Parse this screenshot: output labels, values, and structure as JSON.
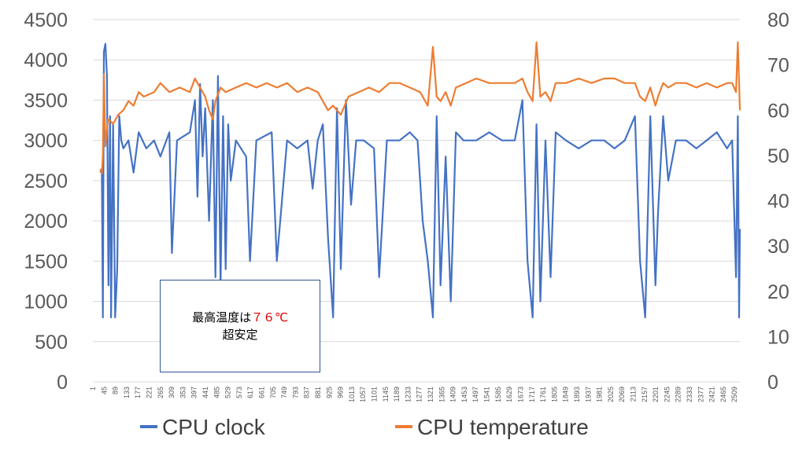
{
  "chart_data": {
    "type": "line",
    "title": "",
    "xlabel": "",
    "ylabel": "",
    "y_left": {
      "min": 0,
      "max": 4500,
      "step": 500,
      "ticks": [
        "0",
        "500",
        "1000",
        "1500",
        "2000",
        "2500",
        "3000",
        "3500",
        "4000",
        "4500"
      ]
    },
    "y_right": {
      "min": 0,
      "max": 80,
      "step": 10,
      "ticks": [
        "0",
        "10",
        "20",
        "30",
        "40",
        "50",
        "60",
        "70",
        "80"
      ]
    },
    "x": {
      "min": 1,
      "max": 2530,
      "ticks": [
        "1",
        "45",
        "89",
        "133",
        "177",
        "221",
        "265",
        "309",
        "353",
        "397",
        "441",
        "485",
        "529",
        "573",
        "617",
        "661",
        "705",
        "749",
        "793",
        "837",
        "881",
        "925",
        "969",
        "1013",
        "1057",
        "1101",
        "1145",
        "1189",
        "1233",
        "1277",
        "1321",
        "1365",
        "1409",
        "1453",
        "1497",
        "1541",
        "1585",
        "1629",
        "1673",
        "1717",
        "1761",
        "1805",
        "1849",
        "1893",
        "1937",
        "1981",
        "2025",
        "2069",
        "2113",
        "2157",
        "2201",
        "2245",
        "2289",
        "2333",
        "2377",
        "2421",
        "2465",
        "2509"
      ]
    },
    "grid": true,
    "legend_placement": "bottom",
    "series": [
      {
        "name": "CPU clock",
        "axis": "left",
        "color": "#4472c4",
        "points": [
          [
            30,
            2600
          ],
          [
            36,
            2650
          ],
          [
            40,
            800
          ],
          [
            44,
            4100
          ],
          [
            50,
            4200
          ],
          [
            56,
            3800
          ],
          [
            62,
            1200
          ],
          [
            68,
            3300
          ],
          [
            72,
            800
          ],
          [
            80,
            3200
          ],
          [
            88,
            800
          ],
          [
            96,
            1400
          ],
          [
            104,
            3300
          ],
          [
            112,
            3000
          ],
          [
            120,
            2900
          ],
          [
            140,
            3000
          ],
          [
            160,
            2600
          ],
          [
            180,
            3100
          ],
          [
            210,
            2900
          ],
          [
            240,
            3000
          ],
          [
            265,
            2800
          ],
          [
            300,
            3100
          ],
          [
            310,
            1600
          ],
          [
            330,
            3000
          ],
          [
            380,
            3100
          ],
          [
            400,
            3500
          ],
          [
            410,
            2300
          ],
          [
            420,
            3700
          ],
          [
            430,
            2800
          ],
          [
            440,
            3400
          ],
          [
            455,
            2000
          ],
          [
            470,
            3500
          ],
          [
            480,
            1300
          ],
          [
            490,
            3800
          ],
          [
            500,
            1200
          ],
          [
            510,
            3300
          ],
          [
            520,
            1400
          ],
          [
            530,
            3200
          ],
          [
            540,
            2500
          ],
          [
            560,
            3000
          ],
          [
            600,
            2800
          ],
          [
            615,
            1500
          ],
          [
            640,
            3000
          ],
          [
            700,
            3100
          ],
          [
            720,
            1500
          ],
          [
            760,
            3000
          ],
          [
            800,
            2900
          ],
          [
            840,
            3000
          ],
          [
            860,
            2400
          ],
          [
            880,
            3000
          ],
          [
            900,
            3200
          ],
          [
            920,
            1800
          ],
          [
            940,
            800
          ],
          [
            955,
            3400
          ],
          [
            970,
            1400
          ],
          [
            990,
            3500
          ],
          [
            1010,
            2200
          ],
          [
            1030,
            3000
          ],
          [
            1060,
            3000
          ],
          [
            1100,
            2900
          ],
          [
            1120,
            1300
          ],
          [
            1150,
            3000
          ],
          [
            1200,
            3000
          ],
          [
            1240,
            3100
          ],
          [
            1270,
            3000
          ],
          [
            1290,
            2000
          ],
          [
            1310,
            1500
          ],
          [
            1330,
            800
          ],
          [
            1345,
            3300
          ],
          [
            1360,
            1200
          ],
          [
            1380,
            2800
          ],
          [
            1400,
            1000
          ],
          [
            1420,
            3100
          ],
          [
            1450,
            3000
          ],
          [
            1500,
            3000
          ],
          [
            1550,
            3100
          ],
          [
            1600,
            3000
          ],
          [
            1650,
            3000
          ],
          [
            1680,
            3500
          ],
          [
            1700,
            1500
          ],
          [
            1720,
            800
          ],
          [
            1735,
            3200
          ],
          [
            1750,
            1000
          ],
          [
            1770,
            3000
          ],
          [
            1790,
            1300
          ],
          [
            1810,
            3100
          ],
          [
            1850,
            3000
          ],
          [
            1900,
            2900
          ],
          [
            1950,
            3000
          ],
          [
            2000,
            3000
          ],
          [
            2040,
            2900
          ],
          [
            2080,
            3000
          ],
          [
            2120,
            3300
          ],
          [
            2140,
            1500
          ],
          [
            2160,
            800
          ],
          [
            2180,
            3300
          ],
          [
            2200,
            1200
          ],
          [
            2210,
            2100
          ],
          [
            2230,
            3300
          ],
          [
            2250,
            2500
          ],
          [
            2280,
            3000
          ],
          [
            2320,
            3000
          ],
          [
            2360,
            2900
          ],
          [
            2400,
            3000
          ],
          [
            2440,
            3100
          ],
          [
            2480,
            2900
          ],
          [
            2500,
            3000
          ],
          [
            2515,
            1300
          ],
          [
            2522,
            3300
          ],
          [
            2527,
            800
          ],
          [
            2530,
            1900
          ]
        ]
      },
      {
        "name": "CPU temperature",
        "axis": "right",
        "color": "#ed7d31",
        "points": [
          [
            30,
            47
          ],
          [
            36,
            46
          ],
          [
            40,
            50
          ],
          [
            44,
            68
          ],
          [
            50,
            52
          ],
          [
            60,
            58
          ],
          [
            80,
            57
          ],
          [
            100,
            59
          ],
          [
            120,
            60
          ],
          [
            140,
            62
          ],
          [
            160,
            61
          ],
          [
            180,
            64
          ],
          [
            200,
            63
          ],
          [
            240,
            64
          ],
          [
            265,
            66
          ],
          [
            300,
            64
          ],
          [
            340,
            65
          ],
          [
            380,
            64
          ],
          [
            400,
            67
          ],
          [
            420,
            65
          ],
          [
            440,
            63
          ],
          [
            455,
            60
          ],
          [
            470,
            58
          ],
          [
            480,
            62
          ],
          [
            500,
            65
          ],
          [
            520,
            64
          ],
          [
            560,
            65
          ],
          [
            600,
            66
          ],
          [
            640,
            65
          ],
          [
            680,
            66
          ],
          [
            720,
            65
          ],
          [
            760,
            66
          ],
          [
            800,
            64
          ],
          [
            840,
            65
          ],
          [
            880,
            64
          ],
          [
            900,
            62
          ],
          [
            920,
            60
          ],
          [
            940,
            61
          ],
          [
            970,
            59
          ],
          [
            1000,
            63
          ],
          [
            1040,
            64
          ],
          [
            1080,
            65
          ],
          [
            1120,
            64
          ],
          [
            1160,
            66
          ],
          [
            1200,
            66
          ],
          [
            1240,
            65
          ],
          [
            1280,
            64
          ],
          [
            1310,
            61
          ],
          [
            1330,
            74
          ],
          [
            1345,
            63
          ],
          [
            1360,
            62
          ],
          [
            1380,
            64
          ],
          [
            1400,
            61
          ],
          [
            1420,
            65
          ],
          [
            1460,
            66
          ],
          [
            1500,
            67
          ],
          [
            1550,
            66
          ],
          [
            1600,
            66
          ],
          [
            1650,
            66
          ],
          [
            1680,
            67
          ],
          [
            1700,
            64
          ],
          [
            1720,
            62
          ],
          [
            1735,
            75
          ],
          [
            1750,
            63
          ],
          [
            1770,
            64
          ],
          [
            1790,
            62
          ],
          [
            1810,
            66
          ],
          [
            1850,
            66
          ],
          [
            1900,
            67
          ],
          [
            1950,
            66
          ],
          [
            2000,
            67
          ],
          [
            2040,
            67
          ],
          [
            2080,
            66
          ],
          [
            2120,
            66
          ],
          [
            2140,
            63
          ],
          [
            2160,
            62
          ],
          [
            2180,
            65
          ],
          [
            2200,
            61
          ],
          [
            2210,
            63
          ],
          [
            2230,
            66
          ],
          [
            2250,
            65
          ],
          [
            2280,
            66
          ],
          [
            2320,
            66
          ],
          [
            2360,
            65
          ],
          [
            2400,
            66
          ],
          [
            2440,
            65
          ],
          [
            2480,
            66
          ],
          [
            2500,
            66
          ],
          [
            2515,
            64
          ],
          [
            2522,
            75
          ],
          [
            2527,
            66
          ],
          [
            2530,
            60
          ]
        ]
      }
    ]
  },
  "annotation": {
    "line1_prefix": "最高温度は",
    "line1_value": "７６℃",
    "line2": "超安定"
  }
}
